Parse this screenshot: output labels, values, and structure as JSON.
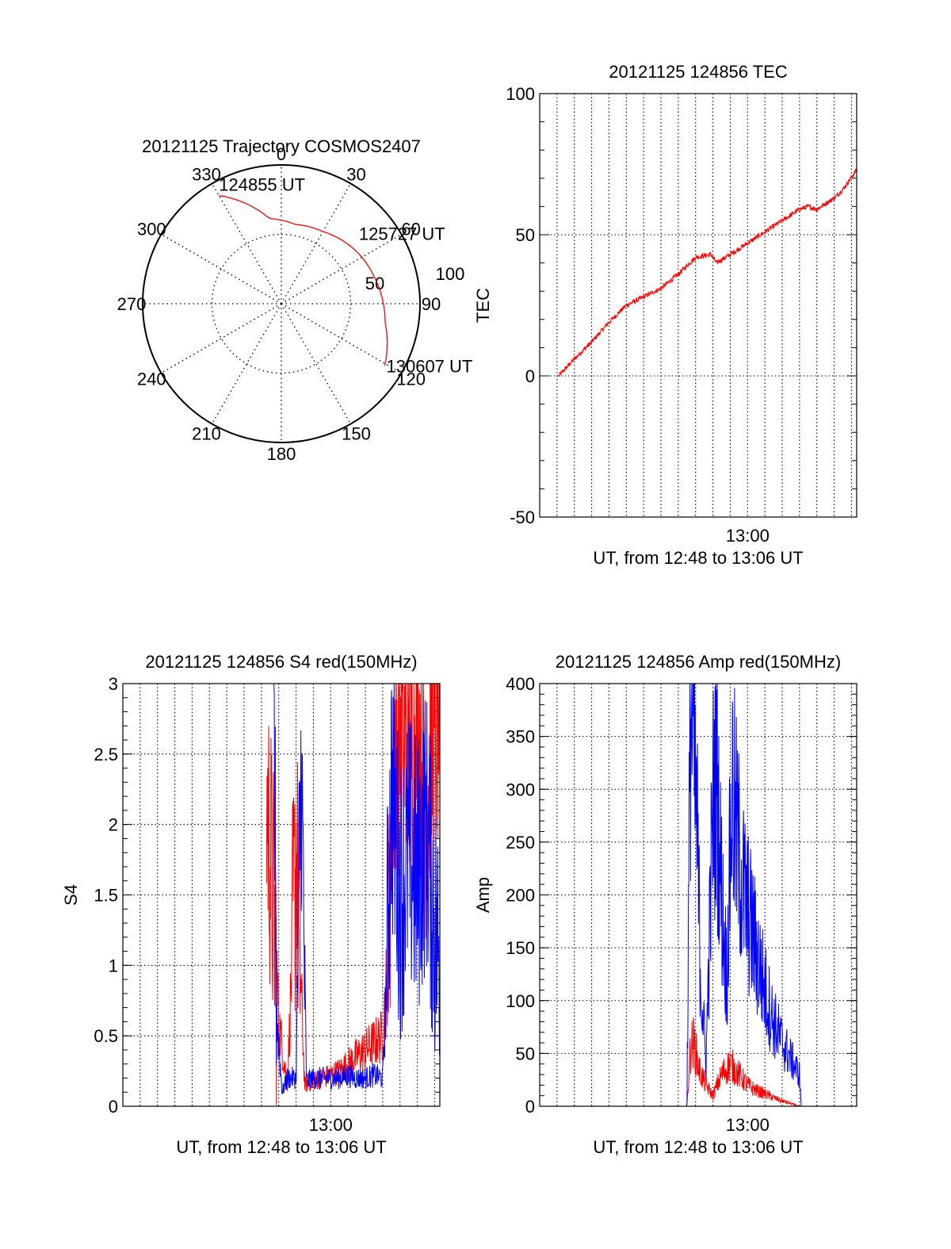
{
  "colors": {
    "red": "#ff0000",
    "blue": "#0000ff",
    "axis": "#000000",
    "grid": "#000000"
  },
  "chart_data": [
    {
      "type": "polar",
      "title": "20121125 Trajectory COSMOS2407",
      "angle_labels": [
        "0",
        "30",
        "60",
        "90",
        "120",
        "150",
        "180",
        "210",
        "240",
        "270",
        "300",
        "330"
      ],
      "radius_labels": [
        "50",
        "100"
      ],
      "radius_range": [
        0,
        100
      ],
      "grid": true,
      "series": [
        {
          "color": "#ff0000",
          "points": [
            {
              "azimuth": 330,
              "radius": 90
            },
            {
              "azimuth": 352,
              "radius": 62
            },
            {
              "azimuth": 10,
              "radius": 58
            },
            {
              "azimuth": 30,
              "radius": 60
            },
            {
              "azimuth": 55,
              "radius": 66
            },
            {
              "azimuth": 75,
              "radius": 70
            },
            {
              "azimuth": 100,
              "radius": 76
            },
            {
              "azimuth": 121,
              "radius": 87
            }
          ]
        }
      ],
      "annotations": [
        {
          "text": "124855 UT",
          "azimuth": 330,
          "radius": 90
        },
        {
          "text": "125727 UT",
          "azimuth": 56,
          "radius": 64
        },
        {
          "text": "130607 UT",
          "azimuth": 121,
          "radius": 87
        }
      ]
    },
    {
      "type": "line",
      "title": "20121125 124856 TEC",
      "xlabel": "UT, from 12:48 to 13:06 UT",
      "ylabel": "TEC",
      "xticks": [
        {
          "value": 12.0,
          "label": "13:00"
        }
      ],
      "xlim": [
        0,
        18.3
      ],
      "ylim": [
        -50,
        100
      ],
      "yticks": [
        -50,
        0,
        50,
        100
      ],
      "grid": true,
      "series": [
        {
          "color": "#ff0000",
          "x": [
            1.1,
            2,
            3,
            4,
            5,
            6,
            7,
            8,
            9,
            9.9,
            10.2,
            11,
            12,
            13,
            14,
            15,
            15.5,
            16,
            16.5,
            17,
            17.5,
            18.3
          ],
          "y": [
            0,
            6,
            12,
            19,
            25,
            28,
            31,
            36,
            42,
            43,
            40,
            43,
            47,
            51,
            55,
            59,
            60,
            59,
            61,
            63,
            66,
            73
          ]
        }
      ]
    },
    {
      "type": "line",
      "title": "20121125 124856 S4 red(150MHz)",
      "xlabel": "UT, from 12:48 to 13:06 UT",
      "ylabel": "S4",
      "xticks": [
        {
          "value": 12.0,
          "label": "13:00"
        }
      ],
      "xlim": [
        0,
        18.3
      ],
      "ylim": [
        0,
        3
      ],
      "yticks": [
        0,
        0.5,
        1,
        1.5,
        2,
        2.5,
        3
      ],
      "grid": true,
      "series": [
        {
          "color": "#ff0000",
          "x": [
            8.3,
            8.6,
            8.8,
            9.0,
            9.5,
            10.0,
            10.5,
            11.0,
            11.5,
            12.0,
            12.5,
            13.0,
            13.5,
            14.0,
            14.5,
            15.0,
            15.3,
            15.6,
            16.0,
            16.5,
            17.0,
            17.5,
            18.0,
            18.3
          ],
          "y": [
            2.2,
            1.6,
            1.2,
            0.6,
            0.15,
            1.8,
            0.15,
            0.18,
            0.2,
            0.22,
            0.25,
            0.3,
            0.35,
            0.4,
            0.45,
            0.5,
            1.0,
            2.5,
            2.7,
            2.4,
            2.8,
            2.2,
            2.6,
            2.9
          ]
        },
        {
          "color": "#0000ff",
          "x": [
            8.7,
            8.9,
            9.2,
            9.5,
            10.0,
            10.3,
            10.6,
            11.0,
            11.5,
            12.0,
            12.5,
            13.0,
            13.5,
            14.0,
            14.5,
            15.0,
            15.2,
            15.5,
            16.0,
            16.5,
            17.0,
            17.5,
            18.0,
            18.3
          ],
          "y": [
            3.0,
            0.6,
            0.1,
            0.2,
            0.2,
            2.4,
            0.18,
            0.2,
            0.2,
            0.2,
            0.2,
            0.22,
            0.2,
            0.2,
            0.22,
            0.2,
            0.8,
            2.3,
            1.5,
            1.8,
            1.6,
            2.0,
            1.3,
            1.0
          ]
        }
      ]
    },
    {
      "type": "line",
      "title": "20121125 124856 Amp red(150MHz)",
      "xlabel": "UT, from 12:48 to 13:06 UT",
      "ylabel": "Amp",
      "xticks": [
        {
          "value": 12.0,
          "label": "13:00"
        }
      ],
      "xlim": [
        0,
        18.3
      ],
      "ylim": [
        0,
        400
      ],
      "yticks": [
        0,
        50,
        100,
        150,
        200,
        250,
        300,
        350,
        400
      ],
      "grid": true,
      "series": [
        {
          "color": "#ff0000",
          "x": [
            1.1,
            8.5,
            8.7,
            8.9,
            9.2,
            9.6,
            10.0,
            10.5,
            11.0,
            11.5,
            12.0,
            12.5,
            13.0,
            13.5,
            14.0,
            15.0,
            18.3
          ],
          "y": [
            0,
            0,
            55,
            60,
            35,
            20,
            10,
            30,
            40,
            30,
            20,
            15,
            12,
            8,
            5,
            0,
            0
          ]
        },
        {
          "color": "#0000ff",
          "x": [
            1.1,
            8.5,
            8.7,
            8.9,
            9.1,
            9.3,
            9.6,
            10.0,
            10.2,
            10.5,
            10.8,
            11.1,
            11.4,
            11.8,
            12.2,
            12.6,
            13.0,
            13.5,
            14.0,
            14.5,
            15.0,
            15.1,
            18.3
          ],
          "y": [
            0,
            0,
            380,
            330,
            250,
            120,
            40,
            280,
            320,
            200,
            120,
            300,
            250,
            200,
            170,
            140,
            110,
            80,
            60,
            45,
            30,
            0,
            0
          ]
        }
      ]
    }
  ]
}
